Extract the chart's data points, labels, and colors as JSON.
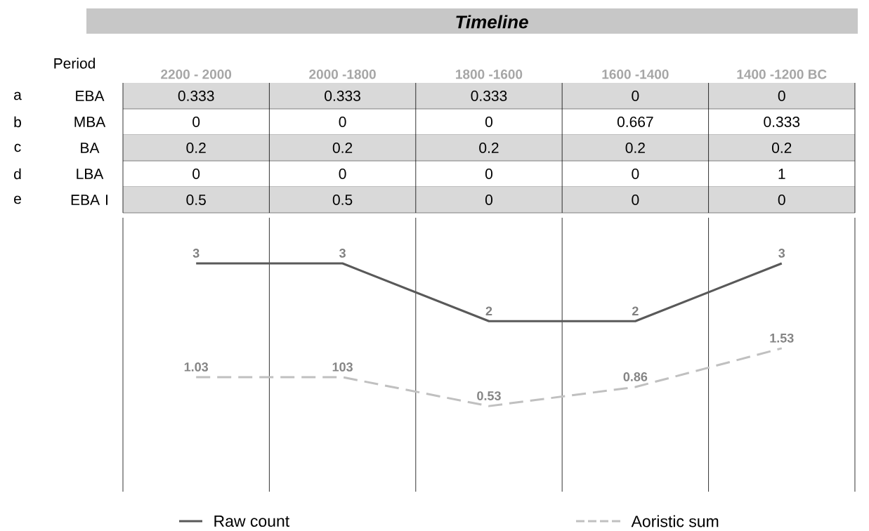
{
  "chart_data": [
    {
      "type": "heatmap",
      "title": "Timeline",
      "ylabel": "Period",
      "categories": [
        "2200 - 2000",
        "2000 -1800",
        "1800 -1600",
        "1600 -1400",
        "1400 -1200 BC"
      ],
      "y_categories": [
        "EBA",
        "MBA",
        "BA",
        "LBA",
        "EBA I"
      ],
      "y2_categories": [
        "a",
        "b",
        "c",
        "d",
        "e"
      ],
      "cells": [
        [
          0.333,
          0.333,
          0.333,
          0,
          0
        ],
        [
          0,
          0,
          0,
          0.667,
          0.333
        ],
        [
          0.2,
          0.2,
          0.2,
          0.2,
          0.2
        ],
        [
          0,
          0,
          0,
          0,
          1
        ],
        [
          0.5,
          0.5,
          0,
          0,
          0
        ]
      ],
      "data_labels": true
    },
    {
      "type": "line",
      "categories": [
        null,
        null,
        null,
        null,
        null
      ],
      "grid": "x",
      "legend": "bottom",
      "marker": "none",
      "annotations": [
        "103"
      ],
      "series": [
        {
          "name": "Raw count",
          "color": "#595959",
          "line_style": "solid",
          "values": [
            3,
            3,
            2,
            2,
            3
          ],
          "value_labels": [
            "3",
            "3",
            "2",
            "2",
            "3"
          ]
        },
        {
          "name": "Aoristic sum",
          "color": "#c0c0c0",
          "line_style": "dashed",
          "values": [
            1.03,
            1.03,
            0.53,
            0.86,
            1.53
          ],
          "value_labels": [
            "1.03",
            null,
            "0.53",
            "0.86",
            "1.53"
          ]
        }
      ]
    }
  ]
}
